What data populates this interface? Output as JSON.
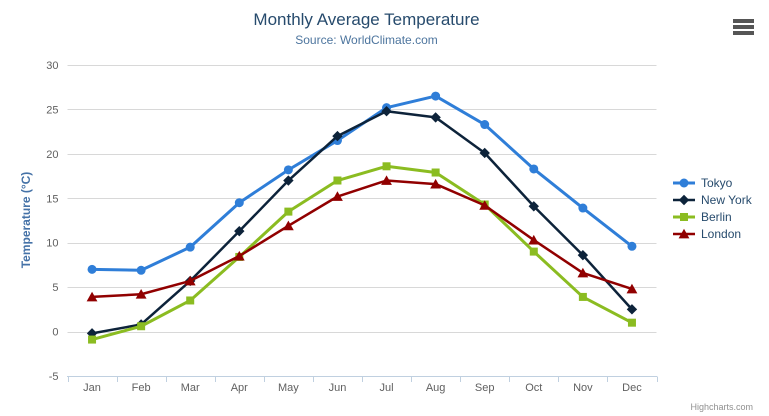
{
  "chart": {
    "credit": "Highcharts.com",
    "menu_icon": "hamburger-icon"
  },
  "colors": {
    "grid": "#d8d8d8",
    "axis_line": "#c0d0e0",
    "tick": "#c0d0e0",
    "axis_label": "#606060",
    "title": "#274b6d",
    "subtitle": "#4d759e",
    "yaxis_title": "#4572a7",
    "credit": "#909090"
  },
  "chart_data": {
    "type": "line",
    "title": "Monthly Average Temperature",
    "subtitle": "Source: WorldClimate.com",
    "xlabel": "",
    "ylabel": "Temperature (°C)",
    "ylim": [
      -5,
      30
    ],
    "yticks": [
      -5,
      0,
      5,
      10,
      15,
      20,
      25,
      30
    ],
    "grid": true,
    "legend_position": "right",
    "categories": [
      "Jan",
      "Feb",
      "Mar",
      "Apr",
      "May",
      "Jun",
      "Jul",
      "Aug",
      "Sep",
      "Oct",
      "Nov",
      "Dec"
    ],
    "series": [
      {
        "name": "Tokyo",
        "color": "#2f7ed8",
        "marker": "circle",
        "line_width": 3,
        "values": [
          7.0,
          6.9,
          9.5,
          14.5,
          18.2,
          21.5,
          25.2,
          26.5,
          23.3,
          18.3,
          13.9,
          9.6
        ]
      },
      {
        "name": "New York",
        "color": "#0d233a",
        "marker": "diamond",
        "line_width": 2.5,
        "values": [
          -0.2,
          0.8,
          5.7,
          11.3,
          17.0,
          22.0,
          24.8,
          24.1,
          20.1,
          14.1,
          8.6,
          2.5
        ]
      },
      {
        "name": "Berlin",
        "color": "#8bbc21",
        "marker": "square",
        "line_width": 3,
        "values": [
          -0.9,
          0.6,
          3.5,
          8.4,
          13.5,
          17.0,
          18.6,
          17.9,
          14.3,
          9.0,
          3.9,
          1.0
        ]
      },
      {
        "name": "London",
        "color": "#910000",
        "marker": "triangle",
        "line_width": 2.5,
        "values": [
          3.9,
          4.2,
          5.7,
          8.5,
          11.9,
          15.2,
          17.0,
          16.6,
          14.2,
          10.3,
          6.6,
          4.8
        ]
      }
    ]
  }
}
